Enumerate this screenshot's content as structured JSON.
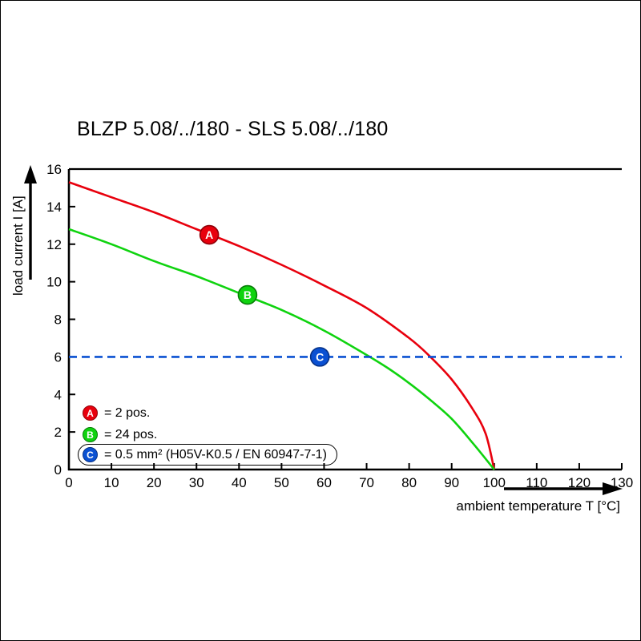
{
  "chart_data": {
    "type": "line",
    "title": "BLZP 5.08/../180 - SLS 5.08/../180",
    "xlabel": "ambient temperature T [°C]",
    "ylabel": "load current I [A]",
    "xlim": [
      0,
      130
    ],
    "ylim": [
      0,
      16
    ],
    "xticks": [
      0,
      10,
      20,
      30,
      40,
      50,
      60,
      70,
      80,
      90,
      100,
      110,
      120,
      130
    ],
    "yticks": [
      0,
      2,
      4,
      6,
      8,
      10,
      12,
      14,
      16
    ],
    "grid": false,
    "legend_position": "bottom-left-inside",
    "axis_color": "#000000",
    "series": [
      {
        "name": "A",
        "label": "= 2 pos.",
        "color": "#e8000d",
        "dark": "#8f0008",
        "style": "solid",
        "points": [
          [
            0,
            15.3
          ],
          [
            10,
            14.5
          ],
          [
            20,
            13.7
          ],
          [
            30,
            12.8
          ],
          [
            40,
            11.9
          ],
          [
            50,
            10.9
          ],
          [
            60,
            9.8
          ],
          [
            70,
            8.6
          ],
          [
            80,
            7.0
          ],
          [
            85,
            6.0
          ],
          [
            90,
            4.8
          ],
          [
            95,
            3.2
          ],
          [
            98,
            1.9
          ],
          [
            100,
            0
          ]
        ],
        "marker": [
          33,
          12.5
        ]
      },
      {
        "name": "B",
        "label": "= 24 pos.",
        "color": "#0fd30f",
        "dark": "#067d06",
        "style": "solid",
        "points": [
          [
            0,
            12.8
          ],
          [
            10,
            12.0
          ],
          [
            20,
            11.1
          ],
          [
            30,
            10.3
          ],
          [
            40,
            9.4
          ],
          [
            50,
            8.5
          ],
          [
            60,
            7.4
          ],
          [
            70,
            6.1
          ],
          [
            75,
            5.4
          ],
          [
            80,
            4.6
          ],
          [
            85,
            3.7
          ],
          [
            90,
            2.7
          ],
          [
            95,
            1.4
          ],
          [
            100,
            0
          ]
        ],
        "marker": [
          42,
          9.3
        ]
      },
      {
        "name": "C",
        "label": "= 0.5 mm² (H05V-K0.5 / EN 60947-7-1)",
        "color": "#0a50d2",
        "dark": "#063186",
        "style": "dashed",
        "points": [
          [
            0,
            6
          ],
          [
            130,
            6
          ]
        ],
        "marker": [
          59,
          6
        ],
        "boxed_in_legend": true
      }
    ]
  }
}
